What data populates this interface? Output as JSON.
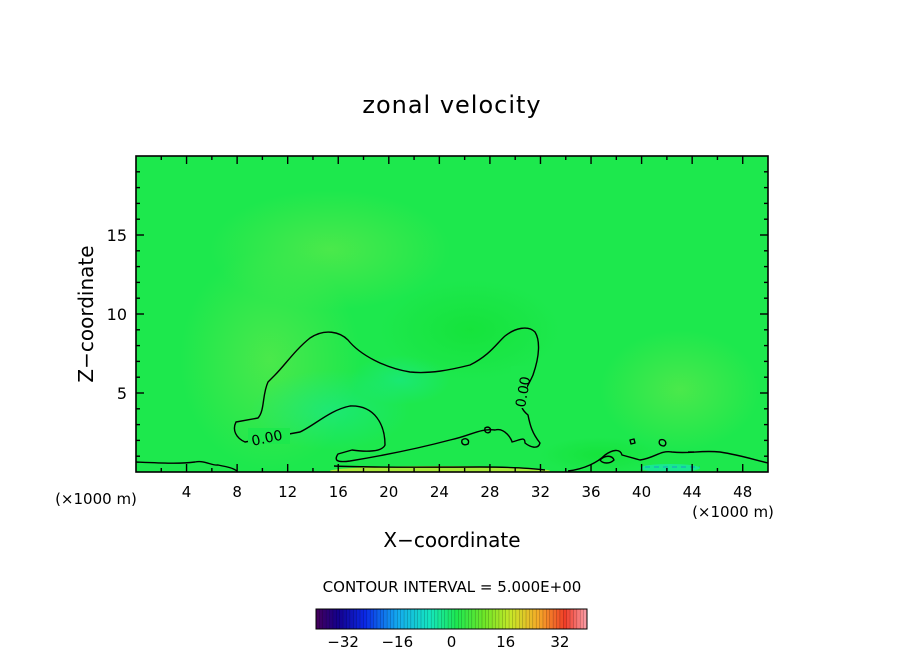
{
  "chart_data": {
    "type": "heatmap",
    "title": "zonal velocity",
    "xlabel": "X−coordinate",
    "ylabel": "Z−coordinate",
    "x_unit": "(×1000 m)",
    "y_unit": "(×1000 m)",
    "xlim": [
      0,
      50
    ],
    "ylim": [
      0,
      20
    ],
    "x_ticks": [
      4,
      8,
      12,
      16,
      20,
      24,
      28,
      32,
      36,
      40,
      44,
      48
    ],
    "y_ticks": [
      5,
      10,
      15
    ],
    "contour_label": "0.00",
    "contour_interval_text": "CONTOUR INTERVAL = 5.000E+00",
    "colorbar": {
      "min": -40,
      "max": 40,
      "ticks": [
        -32,
        -16,
        0,
        16,
        32
      ],
      "tick_labels": [
        "−32",
        "−16",
        "0",
        "16",
        "32"
      ]
    },
    "background_color": "#1de84d",
    "contour_color": "#000000"
  }
}
